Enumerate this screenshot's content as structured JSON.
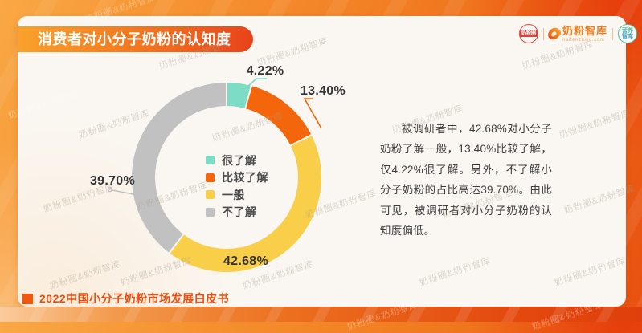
{
  "header": {
    "title": "消费者对小分子奶粉的认知度"
  },
  "logos": {
    "stamp_text": "奶粉圈",
    "brand_name": "奶粉智库",
    "brand_url": "naifenzhiku.com",
    "nutrition_line1": "营养",
    "nutrition_line2": "智库"
  },
  "chart_data": {
    "type": "pie",
    "donut": true,
    "title": "消费者对小分子奶粉的认知度",
    "start_angle_deg": 0,
    "direction": "clockwise",
    "legend_position": "center",
    "segments": [
      {
        "label": "很了解",
        "value": 4.22,
        "display": "4.22%",
        "color": "#7CDCC4"
      },
      {
        "label": "比较了解",
        "value": 13.4,
        "display": "13.40%",
        "color": "#F4660B"
      },
      {
        "label": "一般",
        "value": 42.68,
        "display": "42.68%",
        "color": "#F9CF4A"
      },
      {
        "label": "不了解",
        "value": 39.7,
        "display": "39.70%",
        "color": "#C2C1C1"
      }
    ]
  },
  "analysis": {
    "text": "被调研者中，42.68%对小分子奶粉了解一般，13.40%比较了解，仅4.22%很了解。另外，不了解小分子奶粉的占比高达39.70%。由此可见，被调研者对小分子奶粉的认知度偏低。"
  },
  "footer": {
    "source": "2022中国小分子奶粉市场发展白皮书"
  },
  "watermark": {
    "text": "奶粉圈&奶粉智库"
  },
  "colors": {
    "accent_orange": "#F07318",
    "badge_gradient_start": "#F9A12C",
    "badge_gradient_end": "#E8431A",
    "card_background": "#FAF7F2",
    "footer_text": "#EA4F10",
    "body_text": "#3D3D3D"
  }
}
